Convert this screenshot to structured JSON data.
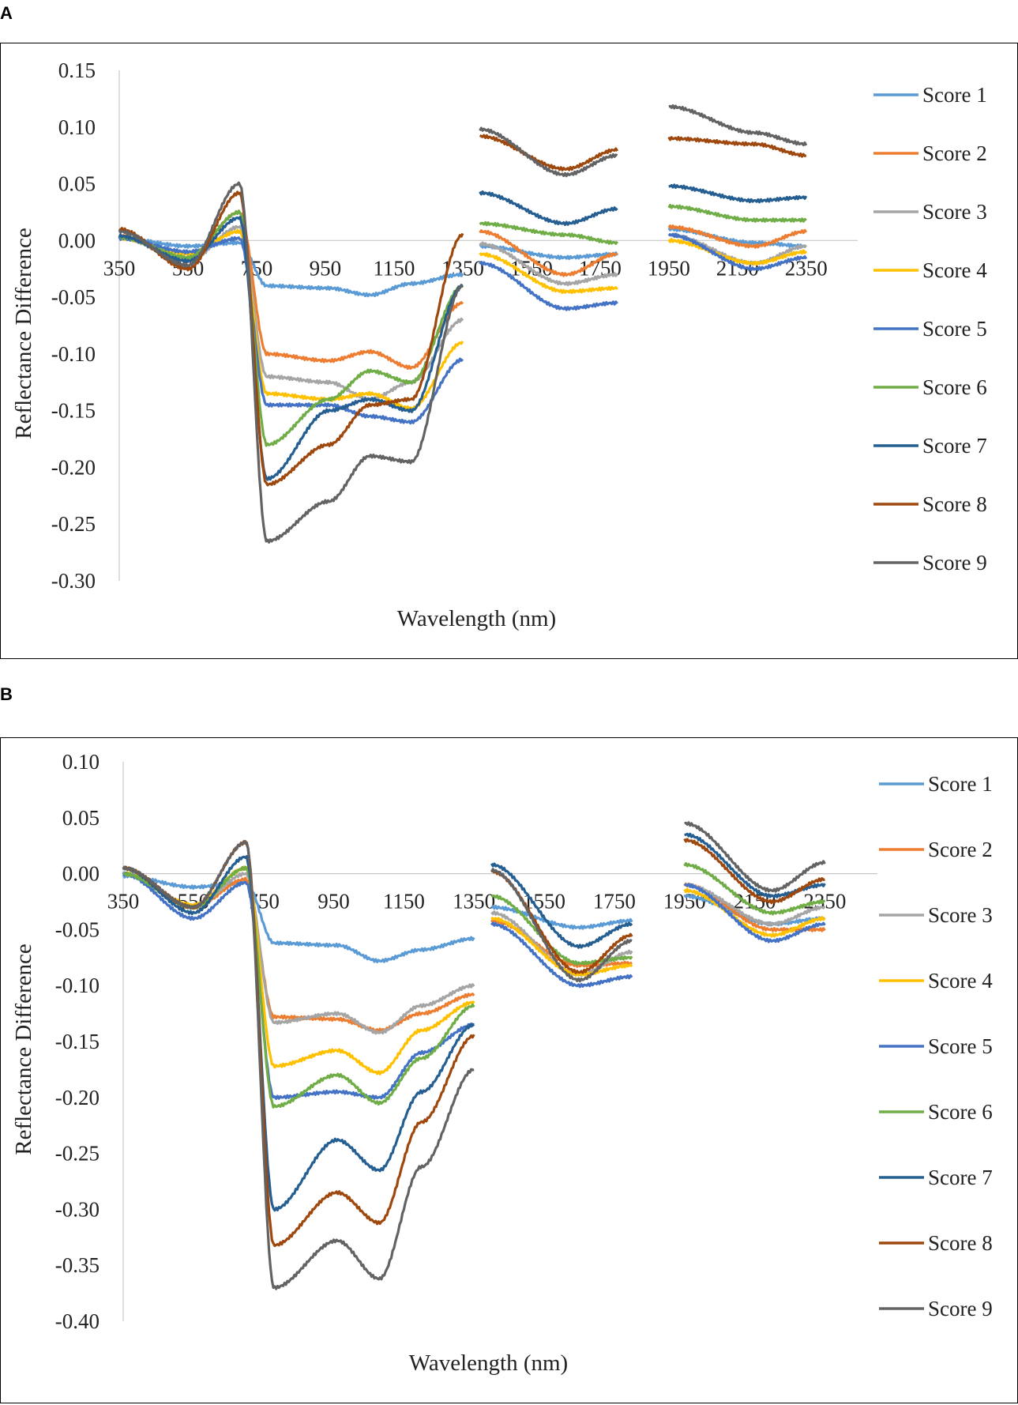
{
  "panels": [
    {
      "label": "A",
      "chart_data": {
        "type": "line",
        "xlabel": "Wavelength (nm)",
        "ylabel": "Reflectance Difference",
        "xlim": [
          350,
          2500
        ],
        "ylim": [
          -0.3,
          0.15
        ],
        "x_ticks": [
          "350",
          "550",
          "750",
          "950",
          "1150",
          "1350",
          "1550",
          "1750",
          "1950",
          "2150",
          "2350"
        ],
        "y_ticks": [
          "0.15",
          "0.10",
          "0.05",
          "0.00",
          "-0.05",
          "-0.10",
          "-0.15",
          "-0.20",
          "-0.25",
          "-0.30"
        ],
        "legend_position": "right",
        "segments_nm": [
          [
            350,
            1350
          ],
          [
            1400,
            1800
          ],
          [
            1950,
            2350
          ]
        ],
        "series": [
          {
            "name": "Score 1",
            "color": "#5b9bd5",
            "values": [
              0.002,
              -0.005,
              -0.002,
              -0.04,
              -0.042,
              -0.048,
              -0.038,
              -0.03,
              -0.005,
              -0.015,
              -0.012,
              0.01,
              -0.002,
              -0.005
            ]
          },
          {
            "name": "Score 2",
            "color": "#ed7d31",
            "values": [
              0.004,
              -0.015,
              0.025,
              -0.1,
              -0.106,
              -0.098,
              -0.112,
              -0.055,
              0.008,
              -0.03,
              -0.012,
              0.012,
              -0.005,
              0.008
            ]
          },
          {
            "name": "Score 3",
            "color": "#a5a5a5",
            "values": [
              0.003,
              -0.018,
              0.012,
              -0.12,
              -0.125,
              -0.14,
              -0.125,
              -0.07,
              -0.003,
              -0.038,
              -0.03,
              0.005,
              -0.02,
              -0.005
            ]
          },
          {
            "name": "Score 4",
            "color": "#ffc000",
            "values": [
              0.002,
              -0.012,
              0.008,
              -0.135,
              -0.14,
              -0.135,
              -0.148,
              -0.09,
              -0.012,
              -0.045,
              -0.042,
              0.0,
              -0.02,
              -0.01
            ]
          },
          {
            "name": "Score 5",
            "color": "#4472c4",
            "values": [
              0.002,
              -0.01,
              0.002,
              -0.145,
              -0.145,
              -0.155,
              -0.16,
              -0.105,
              -0.02,
              -0.06,
              -0.055,
              0.005,
              -0.025,
              -0.015
            ]
          },
          {
            "name": "Score 6",
            "color": "#70ad47",
            "values": [
              0.003,
              -0.015,
              0.025,
              -0.18,
              -0.14,
              -0.115,
              -0.125,
              -0.04,
              0.015,
              0.005,
              -0.002,
              0.03,
              0.018,
              0.018
            ]
          },
          {
            "name": "Score 7",
            "color": "#255e91",
            "values": [
              0.004,
              -0.018,
              0.02,
              -0.21,
              -0.15,
              -0.14,
              -0.15,
              -0.04,
              0.042,
              0.015,
              0.028,
              0.048,
              0.035,
              0.038
            ]
          },
          {
            "name": "Score 8",
            "color": "#9e480e",
            "values": [
              0.01,
              -0.025,
              0.042,
              -0.215,
              -0.18,
              -0.145,
              -0.14,
              0.005,
              0.092,
              0.063,
              0.08,
              0.09,
              0.085,
              0.075
            ]
          },
          {
            "name": "Score 9",
            "color": "#636363",
            "values": [
              0.008,
              -0.022,
              0.05,
              -0.265,
              -0.23,
              -0.19,
              -0.195,
              -0.04,
              0.098,
              0.058,
              0.075,
              0.118,
              0.095,
              0.085
            ]
          }
        ]
      }
    },
    {
      "label": "B",
      "chart_data": {
        "type": "line",
        "xlabel": "Wavelength (nm)",
        "ylabel": "Reflectance Difference",
        "xlim": [
          350,
          2500
        ],
        "ylim": [
          -0.4,
          0.1
        ],
        "x_ticks": [
          "350",
          "550",
          "750",
          "950",
          "1150",
          "1350",
          "1550",
          "1750",
          "1950",
          "2150",
          "2350"
        ],
        "y_ticks": [
          "0.10",
          "0.05",
          "0.00",
          "-0.05",
          "-0.10",
          "-0.15",
          "-0.20",
          "-0.25",
          "-0.30",
          "-0.35",
          "-0.40"
        ],
        "legend_position": "right",
        "segments_nm": [
          [
            350,
            1350
          ],
          [
            1400,
            1800
          ],
          [
            1950,
            2350
          ]
        ],
        "series": [
          {
            "name": "Score 1",
            "color": "#5b9bd5",
            "values": [
              -0.002,
              -0.012,
              -0.008,
              -0.062,
              -0.064,
              -0.078,
              -0.068,
              -0.058,
              -0.03,
              -0.048,
              -0.042,
              -0.02,
              -0.045,
              -0.04
            ]
          },
          {
            "name": "Score 2",
            "color": "#ed7d31",
            "values": [
              0.0,
              -0.03,
              -0.005,
              -0.128,
              -0.13,
              -0.14,
              -0.125,
              -0.108,
              -0.042,
              -0.082,
              -0.08,
              -0.01,
              -0.05,
              -0.05
            ]
          },
          {
            "name": "Score 3",
            "color": "#a5a5a5",
            "values": [
              0.0,
              -0.03,
              0.0,
              -0.133,
              -0.125,
              -0.142,
              -0.118,
              -0.1,
              -0.035,
              -0.09,
              -0.07,
              -0.01,
              -0.045,
              -0.03
            ]
          },
          {
            "name": "Score 4",
            "color": "#ffc000",
            "values": [
              0.0,
              -0.028,
              0.005,
              -0.172,
              -0.158,
              -0.178,
              -0.14,
              -0.115,
              -0.04,
              -0.09,
              -0.082,
              -0.015,
              -0.055,
              -0.04
            ]
          },
          {
            "name": "Score 5",
            "color": "#4472c4",
            "values": [
              0.0,
              -0.04,
              -0.008,
              -0.2,
              -0.195,
              -0.2,
              -0.16,
              -0.135,
              -0.045,
              -0.1,
              -0.092,
              -0.01,
              -0.06,
              -0.045
            ]
          },
          {
            "name": "Score 6",
            "color": "#70ad47",
            "values": [
              0.0,
              -0.03,
              0.005,
              -0.208,
              -0.18,
              -0.205,
              -0.165,
              -0.118,
              -0.02,
              -0.08,
              -0.075,
              0.008,
              -0.035,
              -0.025
            ]
          },
          {
            "name": "Score 7",
            "color": "#255e91",
            "values": [
              0.005,
              -0.035,
              0.015,
              -0.3,
              -0.238,
              -0.265,
              -0.195,
              -0.135,
              0.008,
              -0.065,
              -0.045,
              0.035,
              -0.02,
              -0.01
            ]
          },
          {
            "name": "Score 8",
            "color": "#9e480e",
            "values": [
              0.005,
              -0.03,
              0.028,
              -0.332,
              -0.285,
              -0.312,
              -0.222,
              -0.145,
              0.002,
              -0.088,
              -0.055,
              0.03,
              -0.025,
              -0.005
            ]
          },
          {
            "name": "Score 9",
            "color": "#636363",
            "values": [
              0.005,
              -0.03,
              0.028,
              -0.37,
              -0.328,
              -0.362,
              -0.262,
              -0.175,
              0.003,
              -0.095,
              -0.06,
              0.045,
              -0.015,
              0.01
            ]
          }
        ]
      }
    }
  ]
}
